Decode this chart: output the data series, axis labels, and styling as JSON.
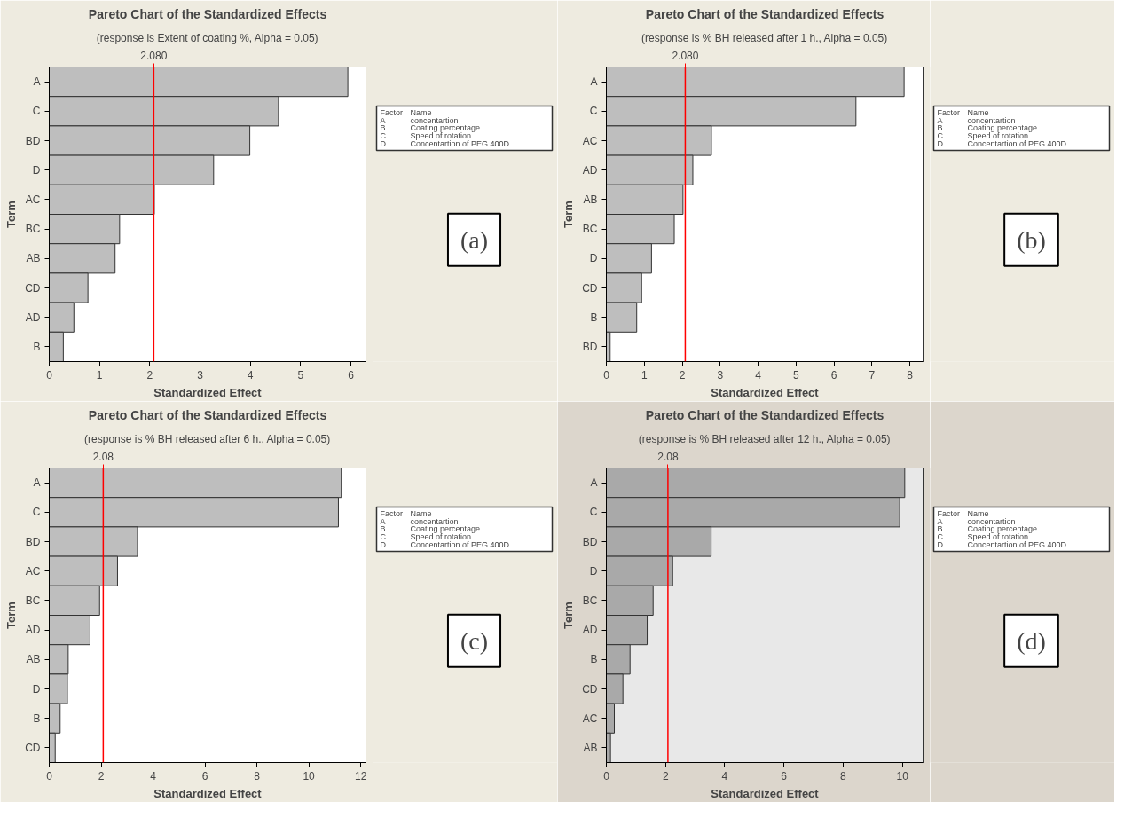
{
  "chart_data": [
    {
      "type": "bar",
      "orientation": "horizontal",
      "title": "Pareto Chart of the Standardized Effects",
      "subtitle": "(response is Extent of coating %, Alpha = 0.05)",
      "xlabel": "Standardized Effect",
      "ylabel": "Term",
      "categories": [
        "A",
        "C",
        "BD",
        "D",
        "AC",
        "BC",
        "AB",
        "CD",
        "AD",
        "B"
      ],
      "values": [
        5.94,
        4.56,
        3.99,
        3.27,
        2.09,
        1.4,
        1.31,
        0.77,
        0.49,
        0.28
      ],
      "color": "#bebebe",
      "xlim": [
        0,
        6.3
      ],
      "xticks": [
        0,
        1,
        2,
        3,
        4,
        5,
        6
      ],
      "grid": false,
      "ref_lines": [
        {
          "axis": "x",
          "value": 2.08,
          "label": "2.080",
          "color": "#ff0000"
        }
      ],
      "annotations": [
        "Factor",
        "Name",
        "A",
        "concentartion",
        "B",
        "Coating percentage",
        "C",
        "Speed of rotation",
        "D",
        "Concentartion of PEG 400D",
        "(a)"
      ]
    },
    {
      "type": "bar",
      "orientation": "horizontal",
      "title": "Pareto Chart of the Standardized Effects",
      "subtitle": "(response is % BH released after 1 h., Alpha = 0.05)",
      "xlabel": "Standardized Effect",
      "ylabel": "Term",
      "categories": [
        "A",
        "C",
        "AC",
        "AD",
        "AB",
        "BC",
        "D",
        "CD",
        "B",
        "BD"
      ],
      "values": [
        7.85,
        6.58,
        2.77,
        2.28,
        2.02,
        1.79,
        1.19,
        0.93,
        0.8,
        0.1
      ],
      "color": "#bebebe",
      "xlim": [
        0,
        8.35
      ],
      "xticks": [
        0,
        1,
        2,
        3,
        4,
        5,
        6,
        7,
        8
      ],
      "grid": false,
      "ref_lines": [
        {
          "axis": "x",
          "value": 2.08,
          "label": "2.080",
          "color": "#ff0000"
        }
      ],
      "annotations": [
        "Factor",
        "Name",
        "A",
        "concentartion",
        "B",
        "Coating percentage",
        "C",
        "Speed of rotation",
        "D",
        "Concentartion of PEG 400D",
        "(b)"
      ]
    },
    {
      "type": "bar",
      "orientation": "horizontal",
      "title": "Pareto Chart of the Standardized Effects",
      "subtitle": "(response is % BH released after 6 h., Alpha = 0.05)",
      "xlabel": "Standardized Effect",
      "ylabel": "Term",
      "categories": [
        "A",
        "C",
        "BD",
        "AC",
        "BC",
        "AD",
        "AB",
        "D",
        "B",
        "CD"
      ],
      "values": [
        11.25,
        11.14,
        3.4,
        2.63,
        1.94,
        1.57,
        0.73,
        0.7,
        0.42,
        0.23
      ],
      "color": "#bebebe",
      "xlim": [
        0,
        12.2
      ],
      "xticks": [
        0,
        2,
        4,
        6,
        8,
        10,
        12
      ],
      "grid": false,
      "ref_lines": [
        {
          "axis": "x",
          "value": 2.08,
          "label": "2.08",
          "color": "#ff0000"
        }
      ],
      "annotations": [
        "Factor",
        "Name",
        "A",
        "concentartion",
        "B",
        "Coating percentage",
        "C",
        "Speed of rotation",
        "D",
        "Concentartion of PEG 400D",
        "(c)"
      ]
    },
    {
      "type": "bar",
      "orientation": "horizontal",
      "title": "Pareto Chart of the Standardized Effects",
      "subtitle": "(response is % BH released after 12 h., Alpha = 0.05)",
      "xlabel": "Standardized Effect",
      "ylabel": "Term",
      "categories": [
        "A",
        "C",
        "BD",
        "D",
        "BC",
        "AD",
        "B",
        "CD",
        "AC",
        "AB"
      ],
      "values": [
        10.08,
        9.91,
        3.54,
        2.24,
        1.58,
        1.38,
        0.8,
        0.56,
        0.27,
        0.14
      ],
      "color": "#a9a9a9",
      "xlim": [
        0,
        10.7
      ],
      "xticks": [
        0,
        2,
        4,
        6,
        8,
        10
      ],
      "grid": false,
      "ref_lines": [
        {
          "axis": "x",
          "value": 2.08,
          "label": "2.08",
          "color": "#ff0000"
        }
      ],
      "annotations": [
        "Factor",
        "Name",
        "A",
        "concentartion",
        "B",
        "Coating percentage",
        "C",
        "Speed of rotation",
        "D",
        "Concentartion of PEG 400D",
        "(d)"
      ]
    }
  ]
}
